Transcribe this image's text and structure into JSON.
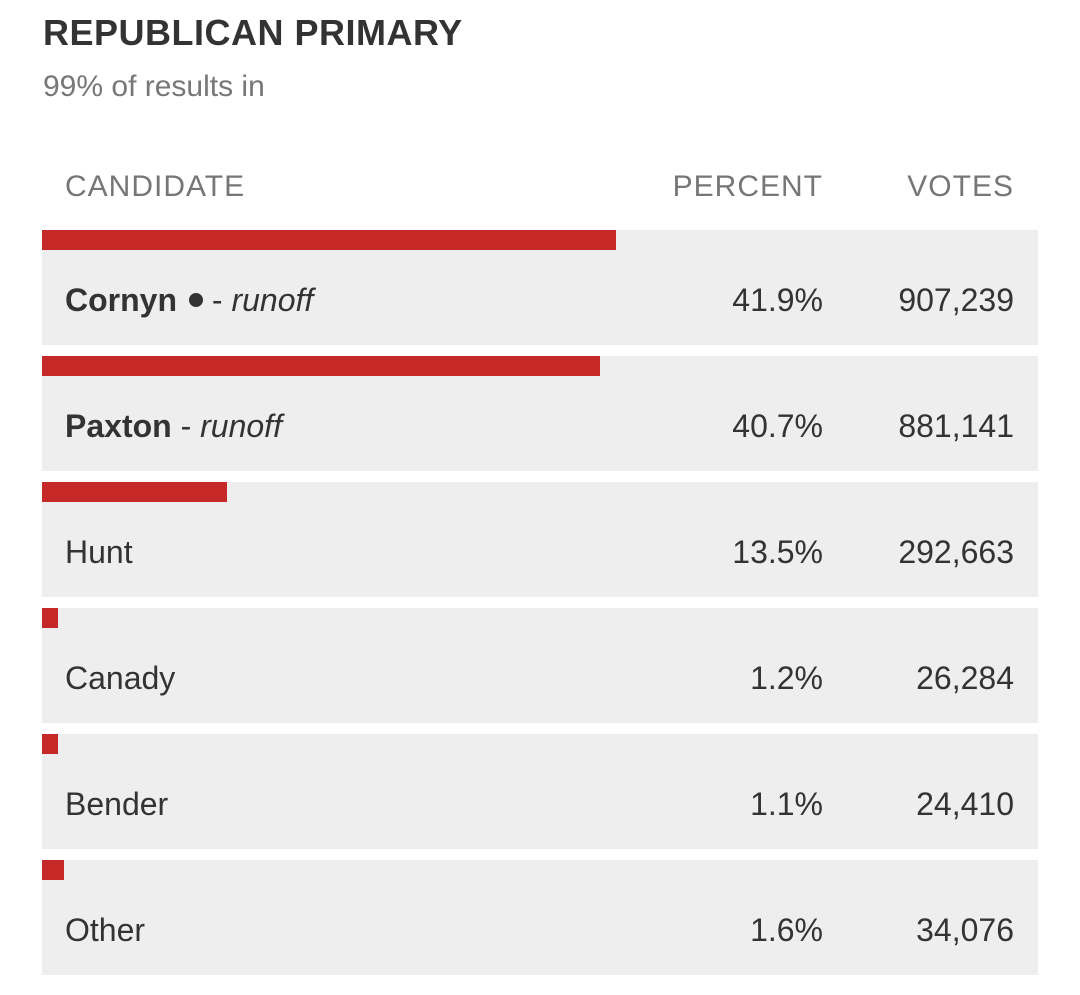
{
  "header": {
    "title": "REPUBLICAN PRIMARY",
    "subtitle": "99% of results in"
  },
  "table": {
    "columns": {
      "candidate": "CANDIDATE",
      "percent": "PERCENT",
      "votes": "VOTES"
    },
    "rows": [
      {
        "name": "Cornyn",
        "incumbent": true,
        "separator": " - ",
        "note": "runoff",
        "percent": "41.9%",
        "votes": "907,239",
        "share": 41.9,
        "bold": true
      },
      {
        "name": "Paxton",
        "incumbent": false,
        "separator": " - ",
        "note": "runoff",
        "percent": "40.7%",
        "votes": "881,141",
        "share": 40.7,
        "bold": true
      },
      {
        "name": "Hunt",
        "incumbent": false,
        "separator": "",
        "note": "",
        "percent": "13.5%",
        "votes": "292,663",
        "share": 13.5,
        "bold": false
      },
      {
        "name": "Canady",
        "incumbent": false,
        "separator": "",
        "note": "",
        "percent": "1.2%",
        "votes": "26,284",
        "share": 1.2,
        "bold": false
      },
      {
        "name": "Bender",
        "incumbent": false,
        "separator": "",
        "note": "",
        "percent": "1.1%",
        "votes": "24,410",
        "share": 1.1,
        "bold": false
      },
      {
        "name": "Other",
        "incumbent": false,
        "separator": "",
        "note": "",
        "percent": "1.6%",
        "votes": "34,076",
        "share": 1.6,
        "bold": false
      }
    ]
  },
  "colors": {
    "bar": "#c62828",
    "row_background": "#eeeeee",
    "text": "#333333",
    "muted": "#777777"
  },
  "icons": {
    "incumbent_marker": "filled-circle-icon"
  }
}
